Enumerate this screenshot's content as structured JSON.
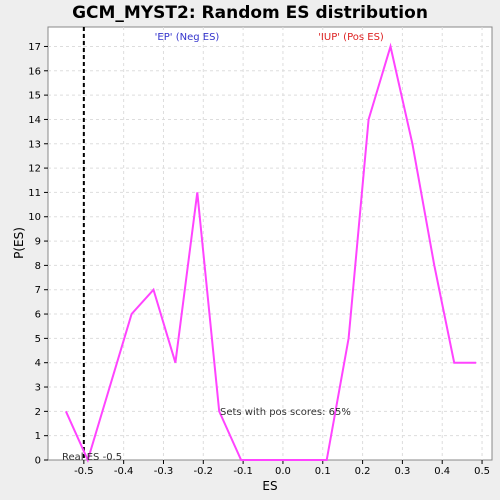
{
  "chart_data": {
    "type": "line",
    "title": "GCM_MYST2: Random ES distribution",
    "xlabel": "ES",
    "ylabel": "P(ES)",
    "xlim": [
      -0.59,
      0.525
    ],
    "ylim": [
      0,
      17.8
    ],
    "xticks": [
      -0.5,
      -0.4,
      -0.3,
      -0.2,
      -0.1,
      0,
      0.1,
      0.2,
      0.3,
      0.4,
      0.5
    ],
    "xtick_labels": [
      "-0.5",
      "-0.4",
      "-0.3",
      "-0.2",
      "-0.1",
      "0.0",
      "0.1",
      "0.2",
      "0.3",
      "0.4",
      "0.5"
    ],
    "yticks": [
      0,
      1,
      2,
      3,
      4,
      5,
      6,
      7,
      8,
      9,
      10,
      11,
      12,
      13,
      14,
      15,
      16,
      17
    ],
    "ytick_labels": [
      "0",
      "1",
      "2",
      "3",
      "4",
      "5",
      "6",
      "7",
      "8",
      "9",
      "10",
      "11",
      "12",
      "13",
      "14",
      "15",
      "16",
      "17"
    ],
    "grid": true,
    "series": [
      {
        "color": "#ff44ff",
        "x": [
          -0.545,
          -0.49,
          -0.435,
          -0.38,
          -0.325,
          -0.27,
          -0.215,
          -0.16,
          -0.105,
          -0.05,
          0.0,
          0.055,
          0.11,
          0.165,
          0.215,
          0.27,
          0.325,
          0.38,
          0.43,
          0.485
        ],
        "y": [
          2,
          0,
          3,
          6,
          7,
          4,
          11,
          2,
          0,
          0,
          0,
          0,
          0,
          5,
          14,
          17,
          13,
          8,
          4,
          4
        ]
      }
    ],
    "real_es": -0.5,
    "real_es_label": "Real ES -0.5",
    "annotations": {
      "neg_label": "'EP' (Neg ES)",
      "pos_label": "'IUP' (Pos ES)",
      "pos_scores": "Sets with pos scores: 65%"
    },
    "colors": {
      "neg_label": "#3333cc",
      "pos_label": "#dd2222",
      "line": "#ff44ff",
      "grid": "#dddddd"
    }
  }
}
